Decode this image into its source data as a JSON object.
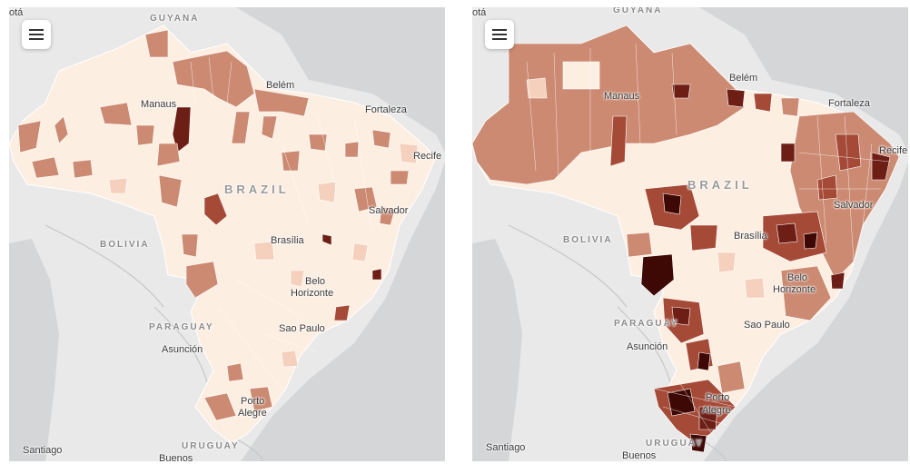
{
  "map": {
    "region": "Brazil",
    "menu_icon": "hamburger-menu-icon",
    "colors": {
      "background": "#d4d6d8",
      "land": "#e9e9e9",
      "border": "#ffffff",
      "scale": [
        "#fdeee2",
        "#f4d0bd",
        "#cc8a72",
        "#a54a37",
        "#6d1e15",
        "#3e0805"
      ]
    }
  },
  "panels": [
    {
      "labels": {
        "partial_city": "otá",
        "guyana": "GUYANA",
        "manaus": "Manaus",
        "belem": "Belém",
        "fortaleza": "Fortaleza",
        "recife": "Recife",
        "brazil": "BRAZIL",
        "salvador": "Salvador",
        "bolivia": "BOLIVIA",
        "brasilia": "Brasília",
        "belo_line1": "Belo",
        "belo_line2": "Horizonte",
        "paraguay": "PARAGUAY",
        "asuncion": "Asunción",
        "sao_paulo": "Sao Paulo",
        "porto_line1": "Porto",
        "porto_line2": "Alegre",
        "uruguay": "URUGUAY",
        "santiago": "Santiago",
        "buenos": "Buenos"
      }
    },
    {
      "labels": {
        "partial_city": "otá",
        "guyana": "GUYANA",
        "manaus": "Manaus",
        "belem": "Belém",
        "fortaleza": "Fortaleza",
        "recife": "Recife",
        "brazil": "BRAZIL",
        "salvador": "Salvador",
        "bolivia": "BOLIVIA",
        "brasilia": "Brasília",
        "belo_line1": "Belo",
        "belo_line2": "Horizonte",
        "paraguay": "PARAGUAY",
        "asuncion": "Asunción",
        "sao_paulo": "Sao Paulo",
        "porto_line1": "Porto",
        "porto_line2": "Alegre",
        "uruguay": "URUGUAY",
        "santiago": "Santiago",
        "buenos": "Buenos"
      }
    }
  ]
}
